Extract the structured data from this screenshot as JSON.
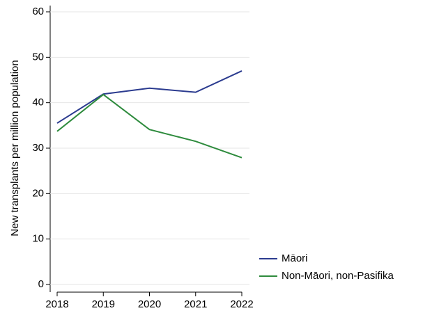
{
  "chart_data": {
    "type": "line",
    "y_label": "New transplants per million population",
    "x": [
      2018,
      2019,
      2020,
      2021,
      2022
    ],
    "series": [
      {
        "name": "Māori",
        "color": "#2b3b8f",
        "values": [
          35.5,
          41.9,
          43.2,
          42.3,
          47.0
        ]
      },
      {
        "name": "Non-Māori, non-Pasifika",
        "color": "#2e8b3d",
        "values": [
          33.7,
          41.8,
          34.1,
          31.5,
          27.9
        ]
      }
    ],
    "xlim": [
      2018,
      2022
    ],
    "xticks": [
      2018,
      2019,
      2020,
      2021,
      2022
    ],
    "ylim": [
      0,
      60
    ],
    "yticks": [
      0,
      10,
      20,
      30,
      40,
      50,
      60
    ],
    "grid": true,
    "legend": "right"
  }
}
